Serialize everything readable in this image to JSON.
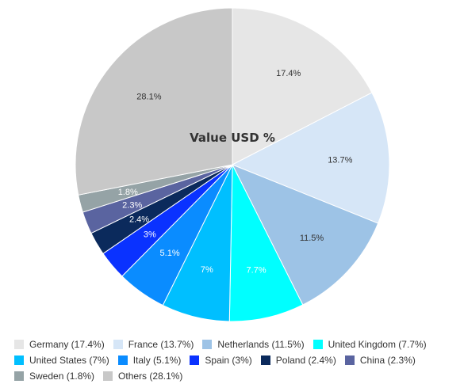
{
  "chart_data": {
    "type": "pie",
    "title": "Value USD %",
    "legend_position": "bottom",
    "slices": [
      {
        "label": "Germany",
        "value": 17.4,
        "display": "17.4%",
        "legend": "Germany (17.4%)",
        "color": "#e6e6e6",
        "label_color": "#333333"
      },
      {
        "label": "France",
        "value": 13.7,
        "display": "13.7%",
        "legend": "France (13.7%)",
        "color": "#d6e6f7",
        "label_color": "#333333"
      },
      {
        "label": "Netherlands",
        "value": 11.5,
        "display": "11.5%",
        "legend": "Netherlands (11.5%)",
        "color": "#9dc3e6",
        "label_color": "#333333"
      },
      {
        "label": "United Kingdom",
        "value": 7.7,
        "display": "7.7%",
        "legend": "United Kingdom (7.7%)",
        "color": "#00ffff",
        "label_color": "#ffffff"
      },
      {
        "label": "United States",
        "value": 7.0,
        "display": "7%",
        "legend": "United States (7%)",
        "color": "#00bfff",
        "label_color": "#ffffff"
      },
      {
        "label": "Italy",
        "value": 5.1,
        "display": "5.1%",
        "legend": "Italy (5.1%)",
        "color": "#0a8cff",
        "label_color": "#ffffff"
      },
      {
        "label": "Spain",
        "value": 3.0,
        "display": "3%",
        "legend": "Spain (3%)",
        "color": "#0a32ff",
        "label_color": "#ffffff"
      },
      {
        "label": "Poland",
        "value": 2.4,
        "display": "2.4%",
        "legend": "Poland (2.4%)",
        "color": "#0b2a5c",
        "label_color": "#ffffff"
      },
      {
        "label": "China",
        "value": 2.3,
        "display": "2.3%",
        "legend": "China (2.3%)",
        "color": "#5a64a0",
        "label_color": "#ffffff"
      },
      {
        "label": "Sweden",
        "value": 1.8,
        "display": "1.8%",
        "legend": "Sweden (1.8%)",
        "color": "#95a3a6",
        "label_color": "#ffffff"
      },
      {
        "label": "Others",
        "value": 28.1,
        "display": "28.1%",
        "legend": "Others (28.1%)",
        "color": "#c8c8c8",
        "label_color": "#333333"
      }
    ]
  }
}
